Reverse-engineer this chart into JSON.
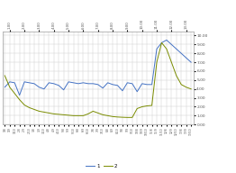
{
  "categories": [
    "1/8",
    "1/9",
    "1/10",
    "2/8",
    "2/9",
    "2/10",
    "3/8",
    "3/9",
    "3/10",
    "4/8",
    "4/9",
    "4/10",
    "5/8",
    "5/9",
    "5/10",
    "6/8",
    "6/9",
    "6/10",
    "7/8",
    "7/9",
    "7/10",
    "8/8",
    "8/9",
    "8/10",
    "9/8",
    "9/9",
    "9/10",
    "10/8",
    "10/9",
    "10/10",
    "11/8",
    "11/9",
    "11/10",
    "12/8",
    "12/9",
    "12/10",
    "13/8",
    "13/9",
    "13/10"
  ],
  "series1": [
    4.2,
    4.8,
    4.7,
    3.3,
    4.8,
    4.7,
    4.6,
    4.2,
    4.0,
    4.7,
    4.6,
    4.4,
    3.9,
    4.8,
    4.7,
    4.6,
    4.7,
    4.6,
    4.6,
    4.5,
    4.1,
    4.7,
    4.5,
    4.4,
    3.8,
    4.7,
    4.6,
    3.7,
    4.6,
    4.5,
    4.5,
    8.5,
    9.2,
    9.5,
    9.0,
    8.5,
    8.0,
    7.5,
    7.0
  ],
  "series2": [
    5.5,
    4.2,
    3.5,
    2.8,
    2.2,
    1.9,
    1.7,
    1.5,
    1.4,
    1.3,
    1.2,
    1.15,
    1.1,
    1.05,
    1.0,
    1.0,
    1.0,
    1.2,
    1.5,
    1.3,
    1.1,
    1.0,
    0.9,
    0.85,
    0.82,
    0.8,
    0.8,
    1.8,
    2.0,
    2.1,
    2.15,
    7.0,
    9.2,
    8.5,
    7.0,
    5.5,
    4.5,
    4.2,
    4.0
  ],
  "top_labels": [
    "1.00",
    "2.00",
    "3.00",
    "4.00",
    "5.00",
    "6.00",
    "7.00",
    "8.00",
    "9.00",
    "10.00",
    "11.00",
    "12.00",
    "13.00"
  ],
  "right_yticks": [
    0.0,
    1.0,
    2.0,
    3.0,
    4.0,
    5.0,
    6.0,
    7.0,
    8.0,
    9.0,
    10.0
  ],
  "color1": "#4472c4",
  "color2": "#7a8c00",
  "bg_color": "#ffffff",
  "grid_color": "#d0d0d0",
  "legend_labels": [
    "1",
    "2"
  ],
  "ylim": [
    0.0,
    10.5
  ],
  "fig_bg": "#ffffff"
}
